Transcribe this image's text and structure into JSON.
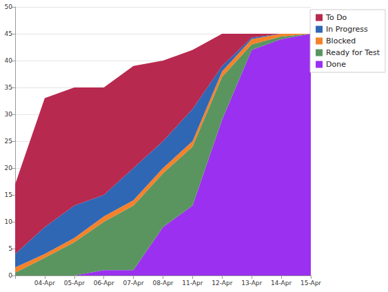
{
  "chart_data": {
    "type": "area",
    "stacked": true,
    "grid": true,
    "legend": "top-right",
    "categories": [
      null,
      "04-Apr",
      "05-Apr",
      "06-Apr",
      "07-Apr",
      "08-Apr",
      "11-Apr",
      "12-Apr",
      "13-Apr",
      "14-Apr",
      "15-Apr"
    ],
    "ylim": [
      0,
      50
    ],
    "yticks": [
      0,
      5,
      10,
      15,
      20,
      25,
      30,
      35,
      40,
      45,
      50
    ],
    "series": [
      {
        "name": "To Do",
        "color": "#b8294f",
        "values": [
          13,
          24,
          22,
          20,
          19,
          15,
          11,
          6,
          0.7,
          0,
          0
        ]
      },
      {
        "name": "In Progress",
        "color": "#2f67b4",
        "values": [
          2.5,
          5,
          6,
          4,
          6,
          5,
          6,
          1,
          0.3,
          0,
          0
        ]
      },
      {
        "name": "Blocked",
        "color": "#f5822a",
        "values": [
          1,
          0.7,
          0.8,
          1,
          1,
          1,
          1,
          1,
          1,
          0.5,
          0
        ]
      },
      {
        "name": "Ready for Test",
        "color": "#5a9560",
        "values": [
          0.5,
          3.3,
          6.2,
          9,
          12,
          10,
          11,
          8,
          1,
          0.5,
          0
        ]
      },
      {
        "name": "Done",
        "color": "#9b30f0",
        "values": [
          0,
          0,
          0,
          1,
          1,
          9,
          13,
          29,
          42,
          44,
          45
        ]
      }
    ]
  }
}
